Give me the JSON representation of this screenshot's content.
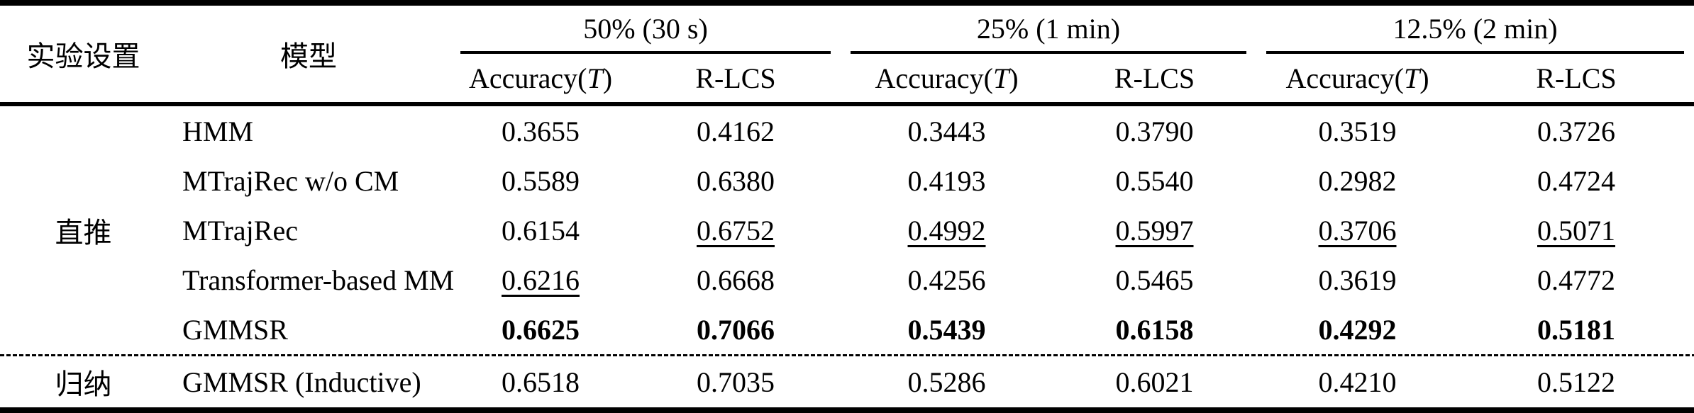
{
  "table": {
    "header": {
      "setting": "实验设置",
      "model": "模型",
      "groups": [
        {
          "label": "50% (30 s)"
        },
        {
          "label": "25% (1 min)"
        },
        {
          "label": "12.5% (2 min)"
        }
      ],
      "metric_accuracy_pre": "Accuracy(",
      "metric_accuracy_var": "T",
      "metric_accuracy_post": ")",
      "metric_rlcs": "R-LCS"
    },
    "emphasis_legend": {
      "u": "underline (second best)",
      "b": "bold (best)"
    },
    "sections": [
      {
        "setting": "直推",
        "rows": [
          {
            "model": "HMM",
            "values": [
              "0.3655",
              "0.4162",
              "0.3443",
              "0.3790",
              "0.3519",
              "0.3726"
            ],
            "marks": [
              "",
              "",
              "",
              "",
              "",
              ""
            ]
          },
          {
            "model": "MTrajRec w/o CM",
            "values": [
              "0.5589",
              "0.6380",
              "0.4193",
              "0.5540",
              "0.2982",
              "0.4724"
            ],
            "marks": [
              "",
              "",
              "",
              "",
              "",
              ""
            ]
          },
          {
            "model": "MTrajRec",
            "values": [
              "0.6154",
              "0.6752",
              "0.4992",
              "0.5997",
              "0.3706",
              "0.5071"
            ],
            "marks": [
              "",
              "u",
              "u",
              "u",
              "u",
              "u"
            ]
          },
          {
            "model": "Transformer-based MM",
            "values": [
              "0.6216",
              "0.6668",
              "0.4256",
              "0.5465",
              "0.3619",
              "0.4772"
            ],
            "marks": [
              "u",
              "",
              "",
              "",
              "",
              ""
            ]
          },
          {
            "model": "GMMSR",
            "values": [
              "0.6625",
              "0.7066",
              "0.5439",
              "0.6158",
              "0.4292",
              "0.5181"
            ],
            "marks": [
              "b",
              "b",
              "b",
              "b",
              "b",
              "b"
            ]
          }
        ]
      },
      {
        "setting": "归纳",
        "rows": [
          {
            "model": "GMMSR (Inductive)",
            "values": [
              "0.6518",
              "0.7035",
              "0.5286",
              "0.6021",
              "0.4210",
              "0.5122"
            ],
            "marks": [
              "",
              "",
              "",
              "",
              "",
              ""
            ]
          }
        ]
      }
    ]
  }
}
